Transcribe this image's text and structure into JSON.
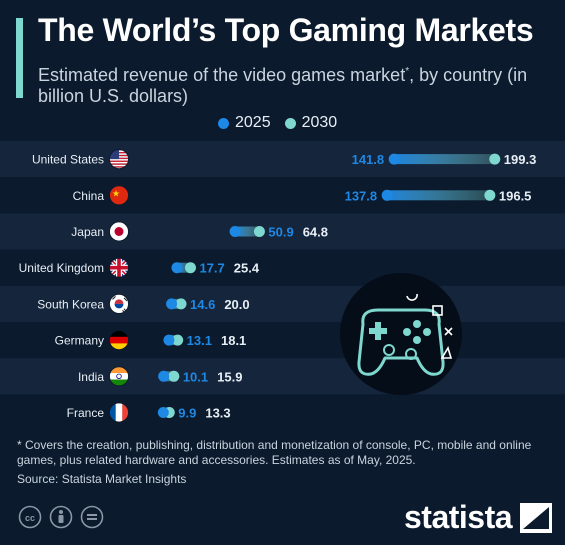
{
  "header": {
    "title": "The World’s Top Gaming Markets",
    "subtitle": "Estimated revenue of the video games market",
    "subtitle_mark": "*",
    "subtitle_rest": ", by country (in billion U.S. dollars)"
  },
  "legend": [
    {
      "label": "2025",
      "color": "#1e88e5"
    },
    {
      "label": "2030",
      "color": "#7fd8cf"
    }
  ],
  "chart_data": {
    "type": "dumbbell",
    "categories": [
      "United States",
      "China",
      "Japan",
      "United Kingdom",
      "South Korea",
      "Germany",
      "India",
      "France"
    ],
    "series": [
      {
        "name": "2025",
        "color": "#1e88e5",
        "values": [
          141.8,
          137.8,
          50.9,
          17.7,
          14.6,
          13.1,
          10.1,
          9.9
        ]
      },
      {
        "name": "2030",
        "color": "#7fd8cf",
        "values": [
          199.3,
          196.5,
          64.8,
          25.4,
          20.0,
          18.1,
          15.9,
          13.3
        ]
      }
    ],
    "value_labels_2025": [
      "141.8",
      "137.8",
      "50.9",
      "17.7",
      "14.6",
      "13.1",
      "10.1",
      "9.9"
    ],
    "value_labels_2030": [
      "199.3",
      "196.5",
      "64.8",
      "25.4",
      "20.0",
      "18.1",
      "15.9",
      "13.3"
    ],
    "flags": [
      "us-flag",
      "china-flag",
      "japan-flag",
      "uk-flag",
      "south-korea-flag",
      "germany-flag",
      "india-flag",
      "france-flag"
    ],
    "grid": false,
    "legend_position": "top"
  },
  "footer": {
    "footnote": "* Covers the creation, publishing, distribution and monetization of console, PC, mobile and online games, plus related hardware and accessories. Estimates as of May, 2025.",
    "source": "Source: Statista Market Insights",
    "brand": "statista",
    "icons": [
      "cc-icon",
      "attribution-icon",
      "no-derivatives-icon"
    ]
  },
  "colors": {
    "background": "#0b1a2c",
    "band": "#15253b",
    "accent": "#7fd8cf",
    "blue": "#1e88e5"
  }
}
